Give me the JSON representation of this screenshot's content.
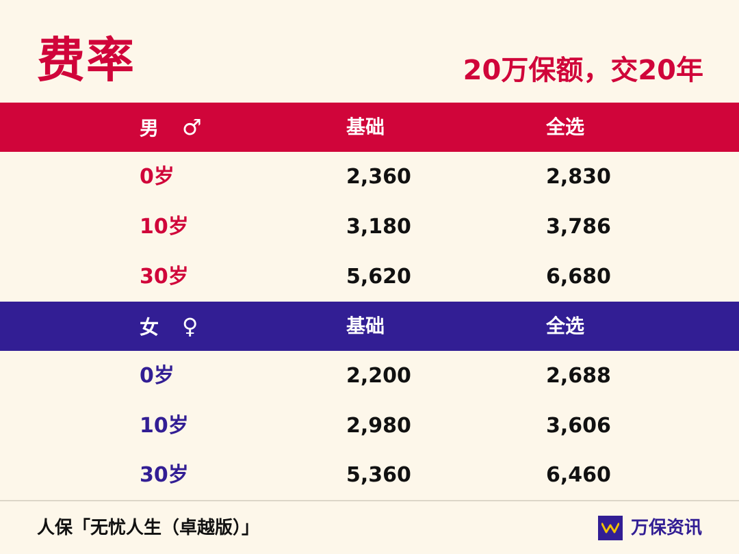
{
  "title": "费率",
  "subtitle": "20万保额，交20年",
  "male": {
    "label": "男",
    "symbol": "♂",
    "col_basic": "基础",
    "col_all": "全选",
    "rows": [
      {
        "age": "0岁",
        "basic": "2,360",
        "all": "2,830"
      },
      {
        "age": "10岁",
        "basic": "3,180",
        "all": "3,786"
      },
      {
        "age": "30岁",
        "basic": "5,620",
        "all": "6,680"
      }
    ]
  },
  "female": {
    "label": "女",
    "symbol": "♀",
    "col_basic": "基础",
    "col_all": "全选",
    "rows": [
      {
        "age": "0岁",
        "basic": "2,200",
        "all": "2,688"
      },
      {
        "age": "10岁",
        "basic": "2,980",
        "all": "3,606"
      },
      {
        "age": "30岁",
        "basic": "5,360",
        "all": "6,460"
      }
    ]
  },
  "footer": {
    "product": "人保「无忧人生（卓越版）」",
    "brand": "万保资讯",
    "logo_icon": "wanbao-logo-icon"
  },
  "colors": {
    "male_accent": "#d0053a",
    "female_accent": "#321e94",
    "background": "#fdf7ea"
  }
}
